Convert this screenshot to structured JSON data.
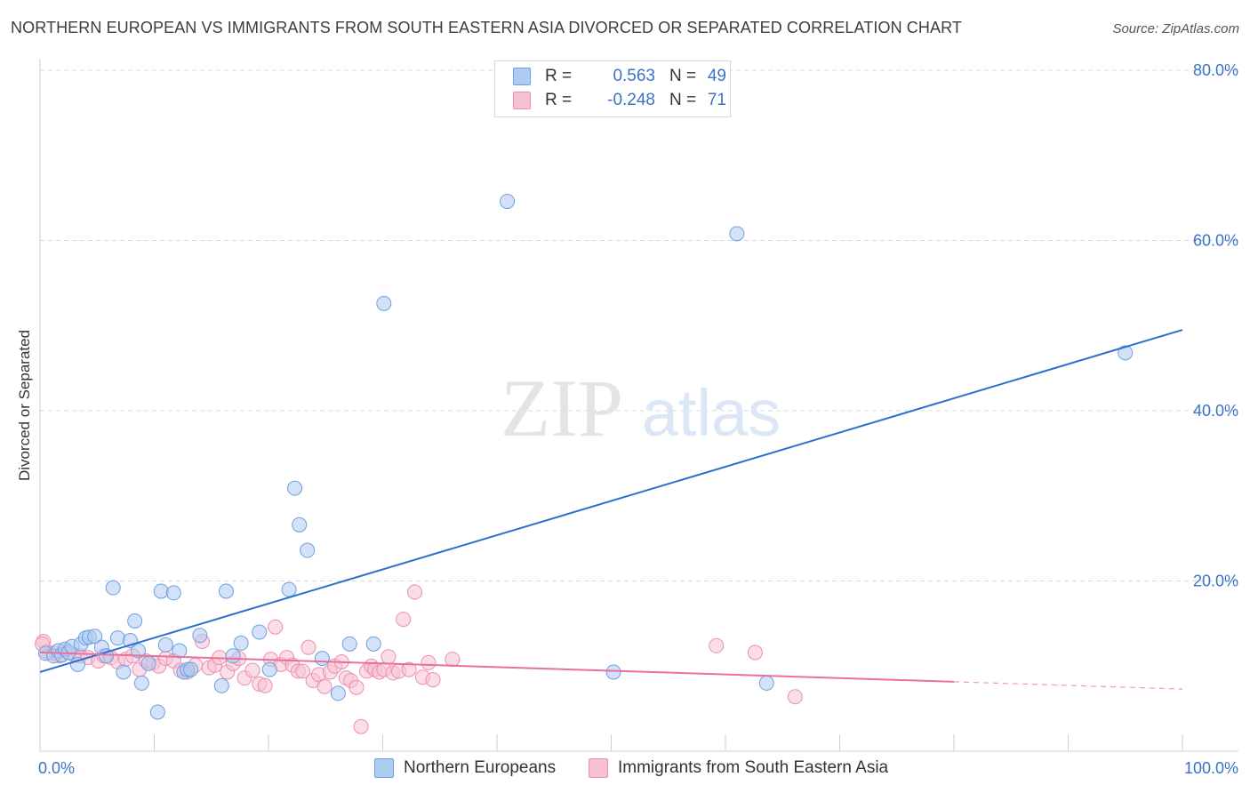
{
  "title": "NORTHERN EUROPEAN VS IMMIGRANTS FROM SOUTH EASTERN ASIA DIVORCED OR SEPARATED CORRELATION CHART",
  "source": "Source: ZipAtlas.com",
  "watermark": {
    "zip": "ZIP",
    "atlas": "atlas"
  },
  "legend_top": {
    "rows": [
      {
        "r_label": "R =",
        "r_value": "0.563",
        "n_label": "N =",
        "n_value": "49",
        "color": "#aecbf3"
      },
      {
        "r_label": "R =",
        "r_value": "-0.248",
        "n_label": "N =",
        "n_value": "71",
        "color": "#f8c1d3"
      }
    ]
  },
  "legend_bottom": [
    {
      "label": "Northern Europeans",
      "color": "#aecbf3"
    },
    {
      "label": "Immigrants from South Eastern Asia",
      "color": "#f8c1d3"
    }
  ],
  "colors": {
    "blue_fill": "#aecbf3",
    "blue_stroke": "#6e9fde",
    "blue_line": "#2b6fd0",
    "pink_fill": "#f8c1d3",
    "pink_stroke": "#ec8fae",
    "pink_line": "#e8709a",
    "grid": "#d9d9d9",
    "axis_text": "#3a72c9"
  },
  "chart_data": {
    "type": "scatter",
    "title": "NORTHERN EUROPEAN VS IMMIGRANTS FROM SOUTH EASTERN ASIA DIVORCED OR SEPARATED CORRELATION CHART",
    "xlabel": "",
    "ylabel": "Divorced or Separated",
    "xlim": [
      0,
      100
    ],
    "ylim": [
      0,
      80
    ],
    "x_tick_labels": [
      "0.0%",
      "100.0%"
    ],
    "y_ticks": [
      20,
      40,
      60,
      80
    ],
    "y_tick_labels": [
      "20.0%",
      "40.0%",
      "60.0%",
      "80.0%"
    ],
    "grid": true,
    "series": [
      {
        "name": "Northern Europeans",
        "r": 0.563,
        "n": 49,
        "trend": {
          "x": [
            0,
            100
          ],
          "y": [
            9.3,
            49.5
          ],
          "dash_from_x": null
        },
        "points": [
          [
            0.5,
            11.5
          ],
          [
            1.2,
            11.2
          ],
          [
            1.6,
            11.8
          ],
          [
            1.9,
            11.3
          ],
          [
            2.2,
            12.0
          ],
          [
            2.5,
            11.6
          ],
          [
            2.8,
            12.3
          ],
          [
            3.3,
            10.2
          ],
          [
            3.6,
            12.6
          ],
          [
            4.0,
            13.3
          ],
          [
            4.3,
            13.4
          ],
          [
            4.8,
            13.5
          ],
          [
            5.4,
            12.2
          ],
          [
            5.8,
            11.2
          ],
          [
            6.4,
            19.2
          ],
          [
            6.8,
            13.3
          ],
          [
            7.3,
            9.3
          ],
          [
            7.9,
            13.0
          ],
          [
            8.3,
            15.3
          ],
          [
            8.6,
            11.8
          ],
          [
            8.9,
            8.0
          ],
          [
            9.5,
            10.3
          ],
          [
            10.3,
            4.6
          ],
          [
            10.6,
            18.8
          ],
          [
            11.0,
            12.5
          ],
          [
            11.7,
            18.6
          ],
          [
            12.2,
            11.8
          ],
          [
            12.6,
            9.3
          ],
          [
            12.9,
            9.6
          ],
          [
            13.2,
            9.6
          ],
          [
            14.0,
            13.6
          ],
          [
            15.9,
            7.7
          ],
          [
            16.3,
            18.8
          ],
          [
            16.9,
            11.2
          ],
          [
            17.6,
            12.7
          ],
          [
            19.2,
            14.0
          ],
          [
            20.1,
            9.6
          ],
          [
            21.8,
            19.0
          ],
          [
            22.3,
            30.9
          ],
          [
            22.7,
            26.6
          ],
          [
            23.4,
            23.6
          ],
          [
            24.7,
            10.9
          ],
          [
            26.1,
            6.8
          ],
          [
            27.1,
            12.6
          ],
          [
            29.2,
            12.6
          ],
          [
            30.1,
            52.6
          ],
          [
            40.9,
            64.6
          ],
          [
            50.2,
            9.3
          ],
          [
            61.0,
            60.8
          ],
          [
            63.6,
            8.0
          ],
          [
            95.0,
            46.8
          ]
        ]
      },
      {
        "name": "Immigrants from South Eastern Asia",
        "r": -0.248,
        "n": 71,
        "trend": {
          "x": [
            0,
            100
          ],
          "y": [
            11.6,
            7.3
          ],
          "dash_from_x": 80
        },
        "points": [
          [
            0.3,
            12.9
          ],
          [
            0.6,
            11.7
          ],
          [
            1.2,
            11.5
          ],
          [
            1.7,
            11.2
          ],
          [
            2.3,
            11.8
          ],
          [
            2.9,
            11.4
          ],
          [
            3.5,
            11.2
          ],
          [
            4.2,
            11.0
          ],
          [
            5.1,
            10.6
          ],
          [
            5.6,
            11.2
          ],
          [
            6.2,
            11.0
          ],
          [
            6.8,
            10.5
          ],
          [
            7.5,
            10.8
          ],
          [
            8.1,
            11.2
          ],
          [
            8.7,
            9.6
          ],
          [
            9.3,
            10.6
          ],
          [
            9.9,
            10.4
          ],
          [
            10.4,
            10.0
          ],
          [
            11.0,
            10.9
          ],
          [
            11.7,
            10.6
          ],
          [
            12.3,
            9.5
          ],
          [
            12.9,
            9.3
          ],
          [
            13.6,
            10.1
          ],
          [
            14.2,
            12.9
          ],
          [
            14.8,
            9.8
          ],
          [
            15.3,
            10.1
          ],
          [
            15.7,
            11.0
          ],
          [
            16.4,
            9.3
          ],
          [
            16.9,
            10.3
          ],
          [
            17.4,
            10.9
          ],
          [
            17.9,
            8.6
          ],
          [
            18.6,
            9.5
          ],
          [
            19.2,
            7.9
          ],
          [
            19.7,
            7.7
          ],
          [
            20.2,
            10.8
          ],
          [
            20.6,
            14.6
          ],
          [
            21.1,
            10.2
          ],
          [
            21.6,
            11.0
          ],
          [
            22.1,
            10.1
          ],
          [
            22.6,
            9.4
          ],
          [
            23.0,
            9.4
          ],
          [
            23.5,
            12.2
          ],
          [
            23.9,
            8.3
          ],
          [
            24.4,
            9.0
          ],
          [
            24.9,
            7.6
          ],
          [
            25.4,
            9.3
          ],
          [
            25.8,
            10.0
          ],
          [
            26.4,
            10.5
          ],
          [
            26.8,
            8.6
          ],
          [
            27.2,
            8.3
          ],
          [
            27.7,
            7.5
          ],
          [
            28.1,
            2.9
          ],
          [
            28.6,
            9.4
          ],
          [
            29.0,
            10.0
          ],
          [
            29.3,
            9.6
          ],
          [
            29.7,
            9.3
          ],
          [
            30.1,
            9.6
          ],
          [
            30.5,
            11.1
          ],
          [
            30.9,
            9.2
          ],
          [
            31.4,
            9.4
          ],
          [
            31.8,
            15.5
          ],
          [
            32.3,
            9.6
          ],
          [
            32.8,
            18.7
          ],
          [
            33.5,
            8.7
          ],
          [
            34.0,
            10.4
          ],
          [
            34.4,
            8.4
          ],
          [
            36.1,
            10.8
          ],
          [
            59.2,
            12.4
          ],
          [
            62.6,
            11.6
          ],
          [
            66.1,
            6.4
          ],
          [
            0.2,
            12.6
          ]
        ]
      }
    ]
  }
}
